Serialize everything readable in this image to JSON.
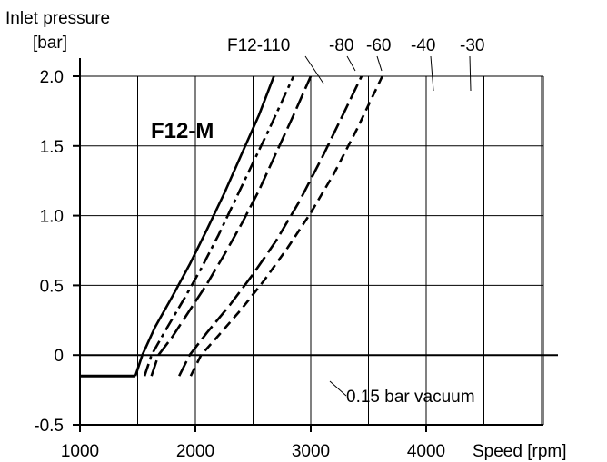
{
  "chart_data": {
    "type": "line",
    "title": "F12-M",
    "xlabel": "Speed [rpm]",
    "ylabel_line1": "Inlet pressure",
    "ylabel_line2": "[bar]",
    "xlim": [
      1000,
      5000
    ],
    "ylim": [
      -0.5,
      2.0
    ],
    "x_ticks": [
      1000,
      2000,
      3000,
      4000
    ],
    "x_tick_labels": [
      "1000",
      "2000",
      "3000",
      "4000"
    ],
    "y_ticks": [
      -0.5,
      0,
      0.5,
      1.0,
      1.5,
      2.0
    ],
    "y_tick_labels": [
      "-0.5",
      "0",
      "0.5",
      "1.0",
      "1.5",
      "2.0"
    ],
    "grid": true,
    "vacuum_level": -0.15,
    "vacuum_label": "0.15 bar vacuum",
    "series": [
      {
        "name": "F12-110",
        "dash": "solid",
        "x": [
          1480,
          1540,
          1650,
          1800,
          1950,
          2100,
          2250,
          2400,
          2550,
          2680
        ],
        "y": [
          -0.15,
          0.0,
          0.2,
          0.42,
          0.65,
          0.9,
          1.16,
          1.44,
          1.72,
          2.0
        ]
      },
      {
        "name": "-80",
        "dash": "dashdot",
        "x": [
          1560,
          1620,
          1750,
          1900,
          2050,
          2200,
          2350,
          2500,
          2650,
          2850
        ],
        "y": [
          -0.15,
          0.0,
          0.19,
          0.4,
          0.62,
          0.86,
          1.12,
          1.38,
          1.64,
          2.0
        ]
      },
      {
        "name": "-60",
        "dash": "longdash",
        "x": [
          1620,
          1680,
          1800,
          1950,
          2100,
          2250,
          2400,
          2550,
          2700,
          2850,
          3000
        ],
        "y": [
          -0.15,
          0.0,
          0.13,
          0.32,
          0.51,
          0.72,
          0.94,
          1.18,
          1.45,
          1.72,
          2.0
        ]
      },
      {
        "name": "-40",
        "dash": "longdash",
        "x": [
          1860,
          1950,
          2100,
          2300,
          2500,
          2700,
          2900,
          3100,
          3300,
          3440
        ],
        "y": [
          -0.15,
          0.0,
          0.16,
          0.36,
          0.58,
          0.82,
          1.1,
          1.42,
          1.76,
          2.0
        ]
      },
      {
        "name": "-30",
        "dash": "dashed",
        "x": [
          1960,
          2050,
          2200,
          2400,
          2600,
          2800,
          3000,
          3200,
          3400,
          3620
        ],
        "y": [
          -0.15,
          0.0,
          0.14,
          0.33,
          0.54,
          0.77,
          1.02,
          1.3,
          1.62,
          2.0
        ]
      }
    ],
    "base_segment": {
      "x": [
        1000,
        1480
      ],
      "y": [
        -0.15,
        -0.15
      ]
    },
    "annotations": [
      {
        "text": "F12-110"
      },
      {
        "text": "-80"
      },
      {
        "text": "-60"
      },
      {
        "text": "-40"
      },
      {
        "text": "-30"
      }
    ]
  }
}
